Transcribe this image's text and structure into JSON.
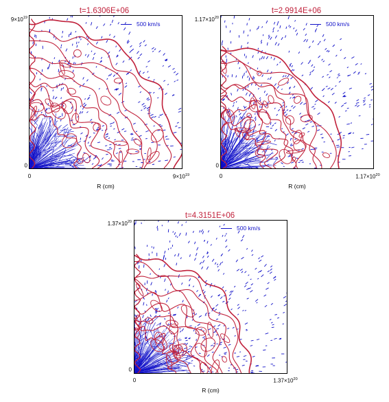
{
  "chart_data": [
    {
      "type": "scatter",
      "title": "t=1.6306E+06",
      "xlabel": "R (cm)",
      "ylabel": "",
      "xlim": [
        0,
        9e+19
      ],
      "ylim": [
        0,
        9e+19
      ],
      "x_ticks": [
        {
          "base": "0",
          "exp": ""
        },
        {
          "base": "9×10",
          "exp": "19"
        }
      ],
      "y_ticks": [
        {
          "base": "0",
          "exp": ""
        },
        {
          "base": "9×10",
          "exp": "19"
        }
      ],
      "legend": {
        "label": "500 km/s",
        "position": "top-right"
      },
      "series": [
        {
          "kind": "contours",
          "color": "#c0203a"
        },
        {
          "kind": "velocity-vectors",
          "color": "#1010c8"
        }
      ]
    },
    {
      "type": "scatter",
      "title": "t=2.9914E+06",
      "xlabel": "R (cm)",
      "ylabel": "",
      "xlim": [
        0,
        1.17e+20
      ],
      "ylim": [
        0,
        1.17e+20
      ],
      "x_ticks": [
        {
          "base": "0",
          "exp": ""
        },
        {
          "base": "1.17×10",
          "exp": "20"
        }
      ],
      "y_ticks": [
        {
          "base": "0",
          "exp": ""
        },
        {
          "base": "1.17×10",
          "exp": "20"
        }
      ],
      "legend": {
        "label": "500 km/s",
        "position": "top-right"
      },
      "series": [
        {
          "kind": "contours",
          "color": "#c0203a"
        },
        {
          "kind": "velocity-vectors",
          "color": "#1010c8"
        }
      ]
    },
    {
      "type": "scatter",
      "title": "t=4.3151E+06",
      "xlabel": "R (cm)",
      "ylabel": "",
      "xlim": [
        0,
        1.37e+20
      ],
      "ylim": [
        0,
        1.37e+20
      ],
      "x_ticks": [
        {
          "base": "0",
          "exp": ""
        },
        {
          "base": "1.37×10",
          "exp": "20"
        }
      ],
      "y_ticks": [
        {
          "base": "0",
          "exp": ""
        },
        {
          "base": "1.37×10",
          "exp": "20"
        }
      ],
      "legend": {
        "label": "500 km/s",
        "position": "top-right"
      },
      "series": [
        {
          "kind": "contours",
          "color": "#c0203a"
        },
        {
          "kind": "velocity-vectors",
          "color": "#1010c8"
        }
      ]
    }
  ]
}
